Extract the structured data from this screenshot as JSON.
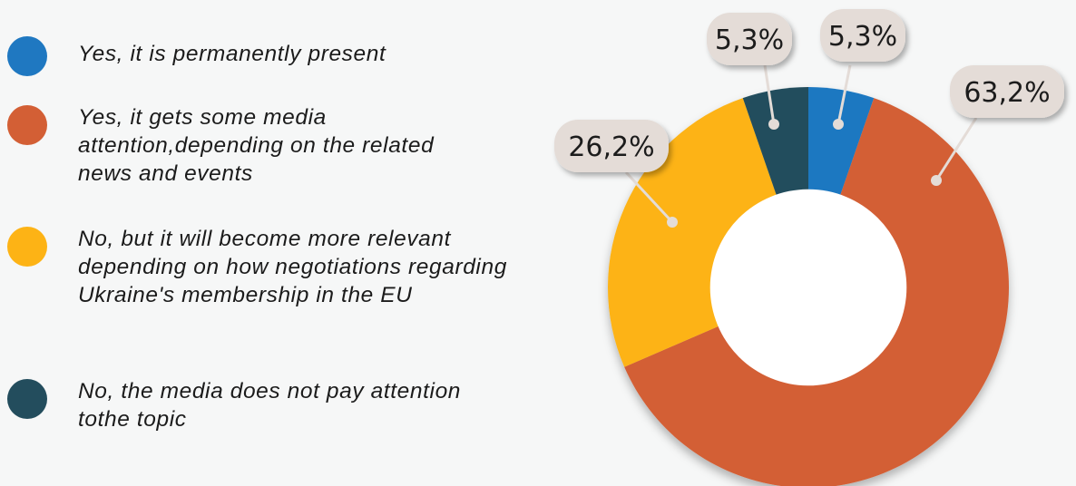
{
  "chart_data": {
    "type": "donut",
    "start_angle_deg": 0,
    "direction": "clockwise",
    "hole_ratio": 0.49,
    "colors": {
      "label_bubble": "#e4dcd7",
      "leader_line": "#e4dcd7",
      "background": "#f6f7f7"
    },
    "slices": [
      {
        "label": "Yes, it is permanently present",
        "value": 5.3,
        "display": "5,3%",
        "color": "#1f78c1"
      },
      {
        "label": "Yes, it gets some media attention,depending on the related news and events",
        "value": 63.2,
        "display": "63,2%",
        "color": "#d35f35"
      },
      {
        "label": "No, but it will become more relevant depending on how negotiations regarding Ukraine's membership in the EU",
        "value": 26.2,
        "display": "26,2%",
        "color": "#fdb315"
      },
      {
        "label": "No, the media does not pay attention tothe topic",
        "value": 5.3,
        "display": "5,3%",
        "color": "#234d5d"
      }
    ]
  }
}
